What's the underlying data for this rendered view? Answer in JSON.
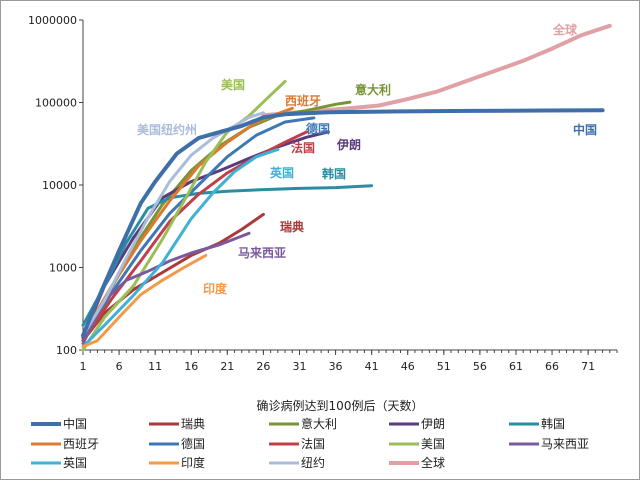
{
  "chart_data": {
    "type": "line",
    "xlabel": "确诊病例达到100例后（天数）",
    "ylabel": "",
    "yscale": "log",
    "xlim": [
      1,
      75
    ],
    "ylim": [
      100,
      1000000
    ],
    "grid": false,
    "x_ticks": [
      1,
      6,
      11,
      16,
      21,
      26,
      31,
      36,
      41,
      46,
      51,
      56,
      61,
      66,
      71
    ],
    "y_ticks": [
      100,
      1000,
      10000,
      100000,
      1000000
    ],
    "y_tick_labels": [
      "100",
      "1000",
      "10000",
      "100000",
      "1000000"
    ],
    "legend": {
      "placement": "bottom",
      "columns": 5
    },
    "series": [
      {
        "name": "中国",
        "color": "#3f6fa8",
        "width": 4,
        "label": "中国",
        "points": [
          [
            1,
            150
          ],
          [
            3,
            400
          ],
          [
            6,
            1600
          ],
          [
            9,
            6000
          ],
          [
            11,
            11000
          ],
          [
            14,
            24000
          ],
          [
            17,
            37000
          ],
          [
            20,
            44000
          ],
          [
            23,
            52000
          ],
          [
            26,
            66000
          ],
          [
            29,
            72000
          ],
          [
            35,
            76000
          ],
          [
            45,
            78000
          ],
          [
            55,
            79000
          ],
          [
            65,
            80000
          ],
          [
            73,
            80500
          ]
        ]
      },
      {
        "name": "瑞典",
        "color": "#a83a3a",
        "width": 3,
        "label": "瑞典",
        "points": [
          [
            1,
            130
          ],
          [
            4,
            280
          ],
          [
            8,
            540
          ],
          [
            12,
            870
          ],
          [
            16,
            1400
          ],
          [
            20,
            2000
          ],
          [
            23,
            2900
          ],
          [
            26,
            4400
          ]
        ]
      },
      {
        "name": "意大利",
        "color": "#779437",
        "width": 3,
        "label": "意大利",
        "points": [
          [
            1,
            150
          ],
          [
            4,
            400
          ],
          [
            8,
            1700
          ],
          [
            12,
            5800
          ],
          [
            16,
            15000
          ],
          [
            20,
            30000
          ],
          [
            24,
            50000
          ],
          [
            28,
            70000
          ],
          [
            32,
            80000
          ],
          [
            36,
            95000
          ],
          [
            38,
            101000
          ]
        ]
      },
      {
        "name": "伊朗",
        "color": "#5a3b7c",
        "width": 3,
        "label": "伊朗",
        "points": [
          [
            1,
            140
          ],
          [
            4,
            600
          ],
          [
            8,
            2300
          ],
          [
            12,
            7000
          ],
          [
            16,
            11000
          ],
          [
            20,
            15000
          ],
          [
            24,
            21000
          ],
          [
            28,
            29000
          ],
          [
            32,
            38000
          ],
          [
            35,
            44000
          ]
        ]
      },
      {
        "name": "韩国",
        "color": "#2a8ea0",
        "width": 3,
        "label": "韩国",
        "points": [
          [
            1,
            200
          ],
          [
            4,
            600
          ],
          [
            7,
            2000
          ],
          [
            10,
            5200
          ],
          [
            13,
            7000
          ],
          [
            17,
            7900
          ],
          [
            21,
            8400
          ],
          [
            26,
            8800
          ],
          [
            31,
            9100
          ],
          [
            36,
            9300
          ],
          [
            41,
            9800
          ]
        ]
      },
      {
        "name": "西班牙",
        "color": "#dc7a2e",
        "width": 3,
        "label": "西班牙",
        "points": [
          [
            1,
            150
          ],
          [
            5,
            600
          ],
          [
            9,
            2100
          ],
          [
            13,
            6400
          ],
          [
            17,
            17000
          ],
          [
            21,
            33000
          ],
          [
            25,
            57000
          ],
          [
            28,
            73000
          ],
          [
            30,
            85000
          ]
        ]
      },
      {
        "name": "德国",
        "color": "#3d78b5",
        "width": 3,
        "label": "德国",
        "points": [
          [
            1,
            130
          ],
          [
            5,
            500
          ],
          [
            9,
            1600
          ],
          [
            13,
            4500
          ],
          [
            17,
            10000
          ],
          [
            21,
            22000
          ],
          [
            25,
            40000
          ],
          [
            29,
            58000
          ],
          [
            33,
            65000
          ]
        ]
      },
      {
        "name": "法国",
        "color": "#c0404a",
        "width": 3,
        "label": "法国",
        "points": [
          [
            1,
            130
          ],
          [
            5,
            420
          ],
          [
            9,
            1200
          ],
          [
            13,
            3600
          ],
          [
            17,
            7700
          ],
          [
            21,
            14000
          ],
          [
            25,
            22000
          ],
          [
            29,
            33000
          ],
          [
            32,
            44000
          ]
        ]
      },
      {
        "name": "美国",
        "color": "#9bbe59",
        "width": 3,
        "label": "美国",
        "points": [
          [
            1,
            100
          ],
          [
            4,
            250
          ],
          [
            8,
            600
          ],
          [
            12,
            2200
          ],
          [
            15,
            6400
          ],
          [
            18,
            19000
          ],
          [
            21,
            44000
          ],
          [
            24,
            69000
          ],
          [
            27,
            123000
          ],
          [
            29,
            180000
          ]
        ]
      },
      {
        "name": "马来西亚",
        "color": "#7a5a9c",
        "width": 3,
        "label": "马来西亚",
        "points": [
          [
            1,
            120
          ],
          [
            4,
            400
          ],
          [
            7,
            700
          ],
          [
            10,
            900
          ],
          [
            13,
            1200
          ],
          [
            16,
            1500
          ],
          [
            20,
            1900
          ],
          [
            23,
            2400
          ],
          [
            24,
            2600
          ]
        ]
      },
      {
        "name": "英国",
        "color": "#3fb0d6",
        "width": 3,
        "label": "英国",
        "points": [
          [
            1,
            110
          ],
          [
            4,
            200
          ],
          [
            8,
            460
          ],
          [
            12,
            1140
          ],
          [
            16,
            3900
          ],
          [
            19,
            8000
          ],
          [
            22,
            14500
          ],
          [
            25,
            22000
          ],
          [
            28,
            27000
          ]
        ]
      },
      {
        "name": "印度",
        "color": "#f29a4a",
        "width": 3,
        "label": "印度",
        "points": [
          [
            1,
            110
          ],
          [
            3,
            130
          ],
          [
            6,
            250
          ],
          [
            9,
            470
          ],
          [
            12,
            700
          ],
          [
            15,
            1000
          ],
          [
            18,
            1400
          ]
        ]
      },
      {
        "name": "纽约",
        "color": "#a9bcd9",
        "width": 3,
        "label": "美国纽约州",
        "points": [
          [
            1,
            150
          ],
          [
            4,
            400
          ],
          [
            7,
            1300
          ],
          [
            10,
            4000
          ],
          [
            13,
            11000
          ],
          [
            16,
            23000
          ],
          [
            19,
            37000
          ],
          [
            22,
            52000
          ],
          [
            24,
            66000
          ],
          [
            26,
            75000
          ]
        ]
      },
      {
        "name": "全球",
        "color": "#e0a0a6",
        "width": 4,
        "label": "全球",
        "points": [
          [
            26,
            70000
          ],
          [
            30,
            75000
          ],
          [
            34,
            80000
          ],
          [
            38,
            85000
          ],
          [
            42,
            92000
          ],
          [
            46,
            110000
          ],
          [
            50,
            135000
          ],
          [
            54,
            180000
          ],
          [
            58,
            240000
          ],
          [
            62,
            320000
          ],
          [
            66,
            450000
          ],
          [
            70,
            650000
          ],
          [
            74,
            850000
          ]
        ]
      }
    ]
  }
}
